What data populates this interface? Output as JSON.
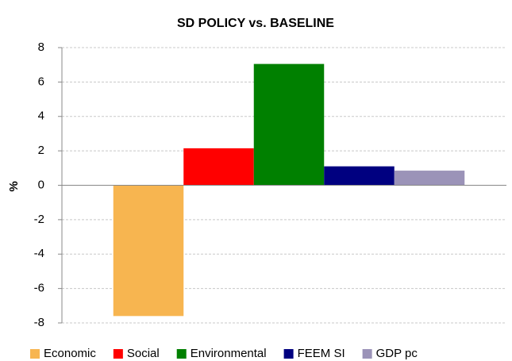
{
  "chart_data": {
    "type": "bar",
    "title": "SD POLICY vs. BASELINE",
    "y_label": "%",
    "categories": [
      null
    ],
    "series": [
      {
        "name": "Economic",
        "color": "#f7b550",
        "values": [
          -7.6
        ]
      },
      {
        "name": "Social",
        "color": "#ff0000",
        "values": [
          2.15
        ]
      },
      {
        "name": "Environmental",
        "color": "#008000",
        "values": [
          7.05
        ]
      },
      {
        "name": "FEEM SI",
        "color": "#000080",
        "values": [
          1.1
        ]
      },
      {
        "name": "GDP pc",
        "color": "#9b93b8",
        "values": [
          0.85
        ]
      }
    ],
    "ylim": [
      -8,
      8
    ],
    "yticks": [
      -8,
      -6,
      -4,
      -2,
      0,
      2,
      4,
      6,
      8
    ],
    "grid": true,
    "legend": "bottom"
  }
}
